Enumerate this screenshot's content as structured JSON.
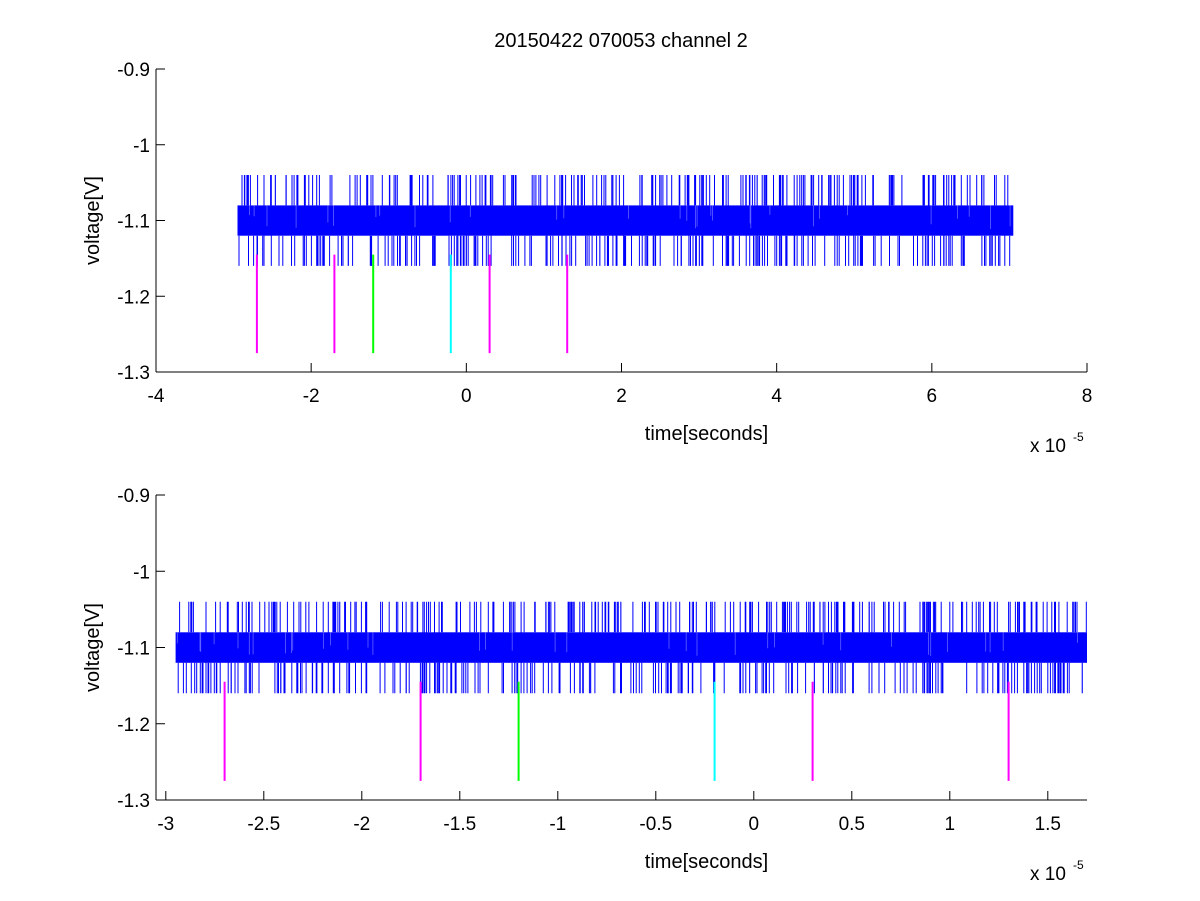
{
  "figure_title": "20150422 070053 channel 2",
  "chart_data": [
    {
      "type": "line",
      "title": "20150422 070053 channel 2",
      "xlabel": "time[seconds]",
      "ylabel": "voltage[V]",
      "x_exponent_base": "x 10",
      "x_exponent": "-5",
      "xlim": [
        -4,
        8
      ],
      "ylim": [
        -1.3,
        -0.9
      ],
      "xticks": [
        -4,
        -2,
        0,
        2,
        4,
        6,
        8
      ],
      "xtick_labels": [
        "-4",
        "-2",
        "0",
        "2",
        "4",
        "6",
        "8"
      ],
      "yticks": [
        -0.9,
        -1,
        -1.1,
        -1.2,
        -1.3
      ],
      "ytick_labels": [
        "-0.9",
        "-1",
        "-1.1",
        "-1.2",
        "-1.3"
      ],
      "grid": false,
      "series": [
        {
          "type": "noise-band",
          "color": "#0000ff",
          "x_range": [
            -2.95,
            7.05
          ],
          "band": [
            -1.12,
            -1.08
          ],
          "min": -1.16,
          "max": -1.04
        }
      ],
      "markers": [
        {
          "x": -2.7,
          "y": [
            -1.275,
            -1.145
          ],
          "color": "#ff00ff"
        },
        {
          "x": -1.7,
          "y": [
            -1.275,
            -1.145
          ],
          "color": "#ff00ff"
        },
        {
          "x": -1.2,
          "y": [
            -1.275,
            -1.145
          ],
          "color": "#00ff00"
        },
        {
          "x": -0.2,
          "y": [
            -1.275,
            -1.145
          ],
          "color": "#00ffff"
        },
        {
          "x": 0.3,
          "y": [
            -1.275,
            -1.145
          ],
          "color": "#ff00ff"
        },
        {
          "x": 1.3,
          "y": [
            -1.275,
            -1.145
          ],
          "color": "#ff00ff"
        }
      ]
    },
    {
      "type": "line",
      "title": "",
      "xlabel": "time[seconds]",
      "ylabel": "voltage[V]",
      "x_exponent_base": "x 10",
      "x_exponent": "-5",
      "xlim": [
        -3.05,
        1.7
      ],
      "ylim": [
        -1.3,
        -0.9
      ],
      "xticks": [
        -3,
        -2.5,
        -2,
        -1.5,
        -1,
        -0.5,
        0,
        0.5,
        1,
        1.5
      ],
      "xtick_labels": [
        "-3",
        "-2.5",
        "-2",
        "-1.5",
        "-1",
        "-0.5",
        "0",
        "0.5",
        "1",
        "1.5"
      ],
      "yticks": [
        -0.9,
        -1,
        -1.1,
        -1.2,
        -1.3
      ],
      "ytick_labels": [
        "-0.9",
        "-1",
        "-1.1",
        "-1.2",
        "-1.3"
      ],
      "grid": false,
      "series": [
        {
          "type": "noise-band",
          "color": "#0000ff",
          "x_range": [
            -2.95,
            1.7
          ],
          "band": [
            -1.12,
            -1.08
          ],
          "min": -1.16,
          "max": -1.04
        }
      ],
      "markers": [
        {
          "x": -2.7,
          "y": [
            -1.275,
            -1.145
          ],
          "color": "#ff00ff"
        },
        {
          "x": -1.7,
          "y": [
            -1.275,
            -1.145
          ],
          "color": "#ff00ff"
        },
        {
          "x": -1.2,
          "y": [
            -1.275,
            -1.145
          ],
          "color": "#00ff00"
        },
        {
          "x": -0.2,
          "y": [
            -1.275,
            -1.145
          ],
          "color": "#00ffff"
        },
        {
          "x": 0.3,
          "y": [
            -1.275,
            -1.145
          ],
          "color": "#ff00ff"
        },
        {
          "x": 1.3,
          "y": [
            -1.275,
            -1.145
          ],
          "color": "#ff00ff"
        }
      ]
    }
  ]
}
